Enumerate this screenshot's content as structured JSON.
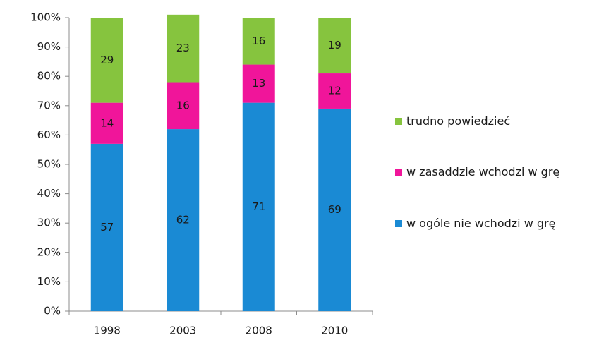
{
  "chart_data": {
    "type": "stacked_bar",
    "categories": [
      "1998",
      "2003",
      "2008",
      "2010"
    ],
    "series": [
      {
        "name": "w ogóle nie wchodzi w grę",
        "color": "#1a8ad4",
        "values": [
          57,
          62,
          71,
          69
        ]
      },
      {
        "name": "w zasaddzie wchodzi w grę",
        "color": "#f0159a",
        "values": [
          14,
          16,
          13,
          12
        ]
      },
      {
        "name": "trudno powiedzieć",
        "color": "#86c43e",
        "values": [
          29,
          23,
          16,
          19
        ]
      }
    ],
    "ylim": [
      0,
      100
    ],
    "yticks": [
      {
        "value": 0,
        "label": "0%"
      },
      {
        "value": 10,
        "label": "10%"
      },
      {
        "value": 20,
        "label": "20%"
      },
      {
        "value": 30,
        "label": "30%"
      },
      {
        "value": 40,
        "label": "40%"
      },
      {
        "value": 50,
        "label": "50%"
      },
      {
        "value": 60,
        "label": "60%"
      },
      {
        "value": 70,
        "label": "70%"
      },
      {
        "value": 80,
        "label": "80%"
      },
      {
        "value": 90,
        "label": "90%"
      },
      {
        "value": 100,
        "label": "100%"
      }
    ],
    "legend": "right"
  }
}
